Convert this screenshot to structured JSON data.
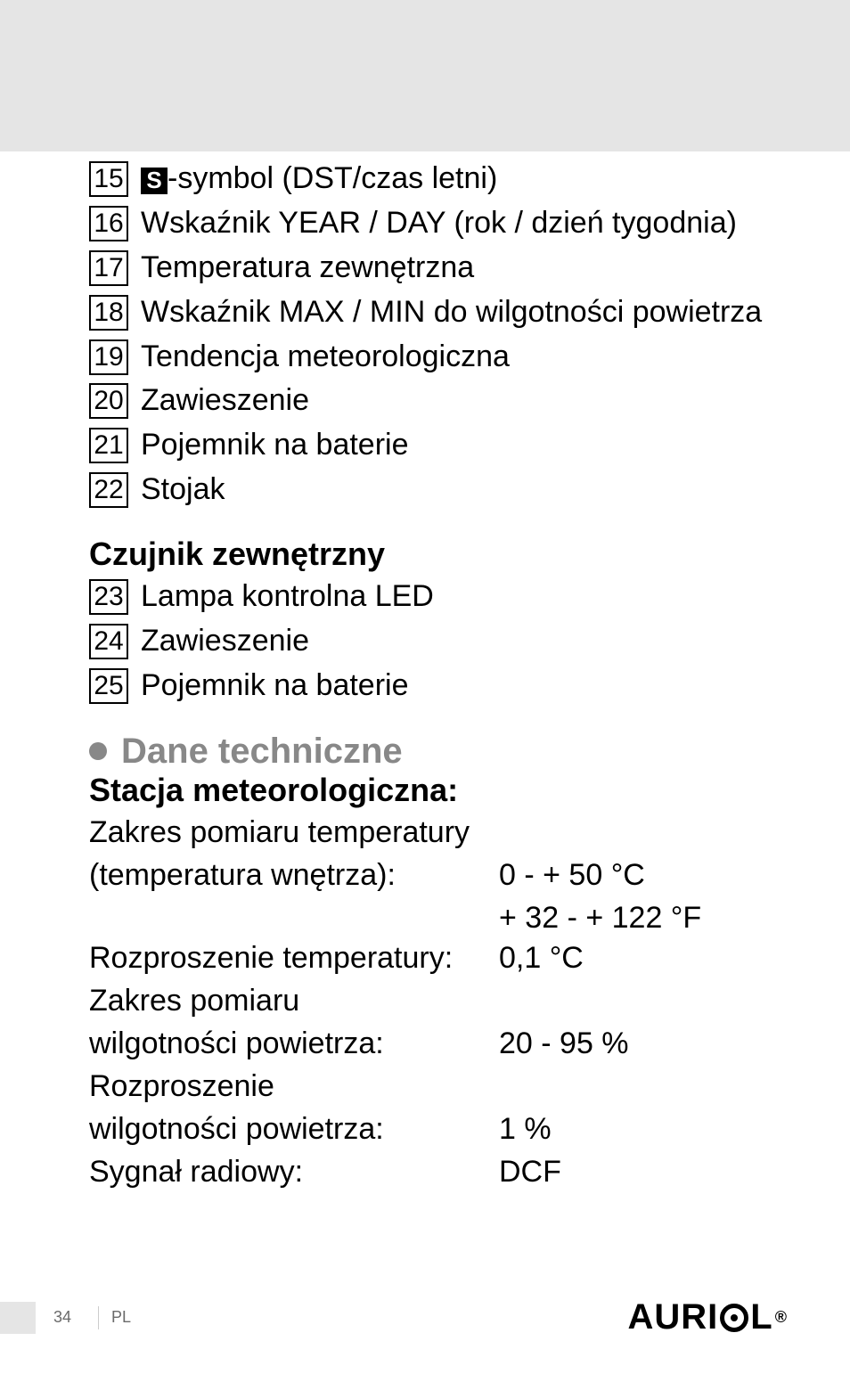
{
  "list1": [
    {
      "num": "15",
      "badge": "S",
      "after": "-symbol (DST/czas letni)"
    },
    {
      "num": "16",
      "text": "Wskaźnik YEAR / DAY (rok / dzień tygodnia)"
    },
    {
      "num": "17",
      "text": "Temperatura zewnętrzna"
    },
    {
      "num": "18",
      "text": "Wskaźnik MAX / MIN do wilgotności powietrza"
    },
    {
      "num": "19",
      "text": "Tendencja meteorologiczna"
    },
    {
      "num": "20",
      "text": "Zawieszenie"
    },
    {
      "num": "21",
      "text": "Pojemnik na baterie"
    },
    {
      "num": "22",
      "text": "Stojak"
    }
  ],
  "section2_title": "Czujnik zewnętrzny",
  "list2": [
    {
      "num": "23",
      "text": "Lampa kontrolna LED"
    },
    {
      "num": "24",
      "text": "Zawieszenie"
    },
    {
      "num": "25",
      "text": "Pojemnik na baterie"
    }
  ],
  "bullet_title": "Dane techniczne",
  "section3_title": "Stacja meteorologiczna:",
  "specs": [
    {
      "label": "Zakres pomiaru temperatury",
      "value": ""
    },
    {
      "label": "(temperatura wnętrza):",
      "value": "0 - + 50 °C"
    },
    {
      "label": "",
      "value": "+ 32 - + 122 °F"
    },
    {
      "label": "Rozproszenie temperatury:",
      "value": "0,1 °C"
    },
    {
      "label": "Zakres pomiaru",
      "value": ""
    },
    {
      "label": "wilgotności powietrza:",
      "value": "20 - 95 %"
    },
    {
      "label": "Rozproszenie",
      "value": ""
    },
    {
      "label": "wilgotności powietrza:",
      "value": "1 %"
    },
    {
      "label": "Sygnał radiowy:",
      "value": "DCF"
    }
  ],
  "footer": {
    "page": "34",
    "lang": "PL",
    "brand_pre": "AURI",
    "brand_post": "L"
  },
  "colors": {
    "topbar": "#e5e5e5",
    "bullet": "#888888",
    "footer_gray": "#6a6a6a"
  }
}
